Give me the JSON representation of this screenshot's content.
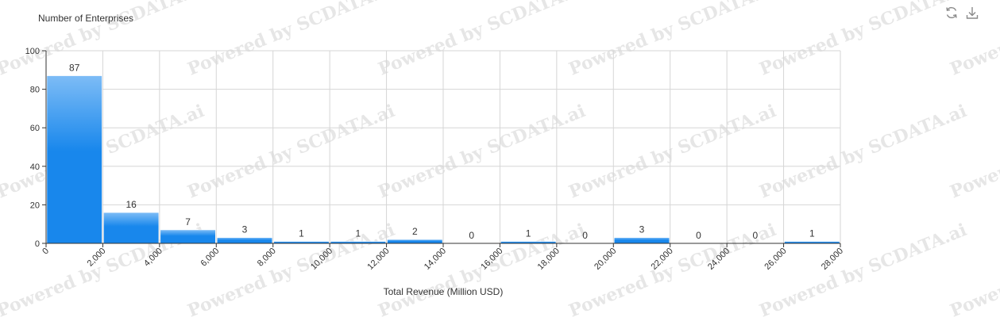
{
  "watermark": "Powered by SCDATA.ai",
  "toolbar": {
    "refresh_icon": "refresh-icon",
    "download_icon": "download-icon"
  },
  "colors": {
    "bar_top": "#7dbcf6",
    "bar_bottom": "#1887ec",
    "axis": "#333333",
    "grid": "#d6d6d6"
  },
  "chart_data": {
    "type": "bar",
    "title": "",
    "ylabel": "Number of Enterprises",
    "xlabel": "Total Revenue (Million USD)",
    "bin_edges": [
      0,
      2000,
      4000,
      6000,
      8000,
      10000,
      12000,
      14000,
      16000,
      18000,
      20000,
      22000,
      24000,
      26000,
      28000
    ],
    "x_tick_labels": [
      "0",
      "2,000",
      "4,000",
      "6,000",
      "8,000",
      "10,000",
      "12,000",
      "14,000",
      "16,000",
      "18,000",
      "20,000",
      "22,000",
      "24,000",
      "26,000",
      "28,000"
    ],
    "values": [
      87,
      16,
      7,
      3,
      1,
      1,
      2,
      0,
      1,
      0,
      3,
      0,
      0,
      1
    ],
    "ylim": [
      0,
      100
    ],
    "y_ticks": [
      0,
      20,
      40,
      60,
      80,
      100
    ],
    "grid": true
  }
}
